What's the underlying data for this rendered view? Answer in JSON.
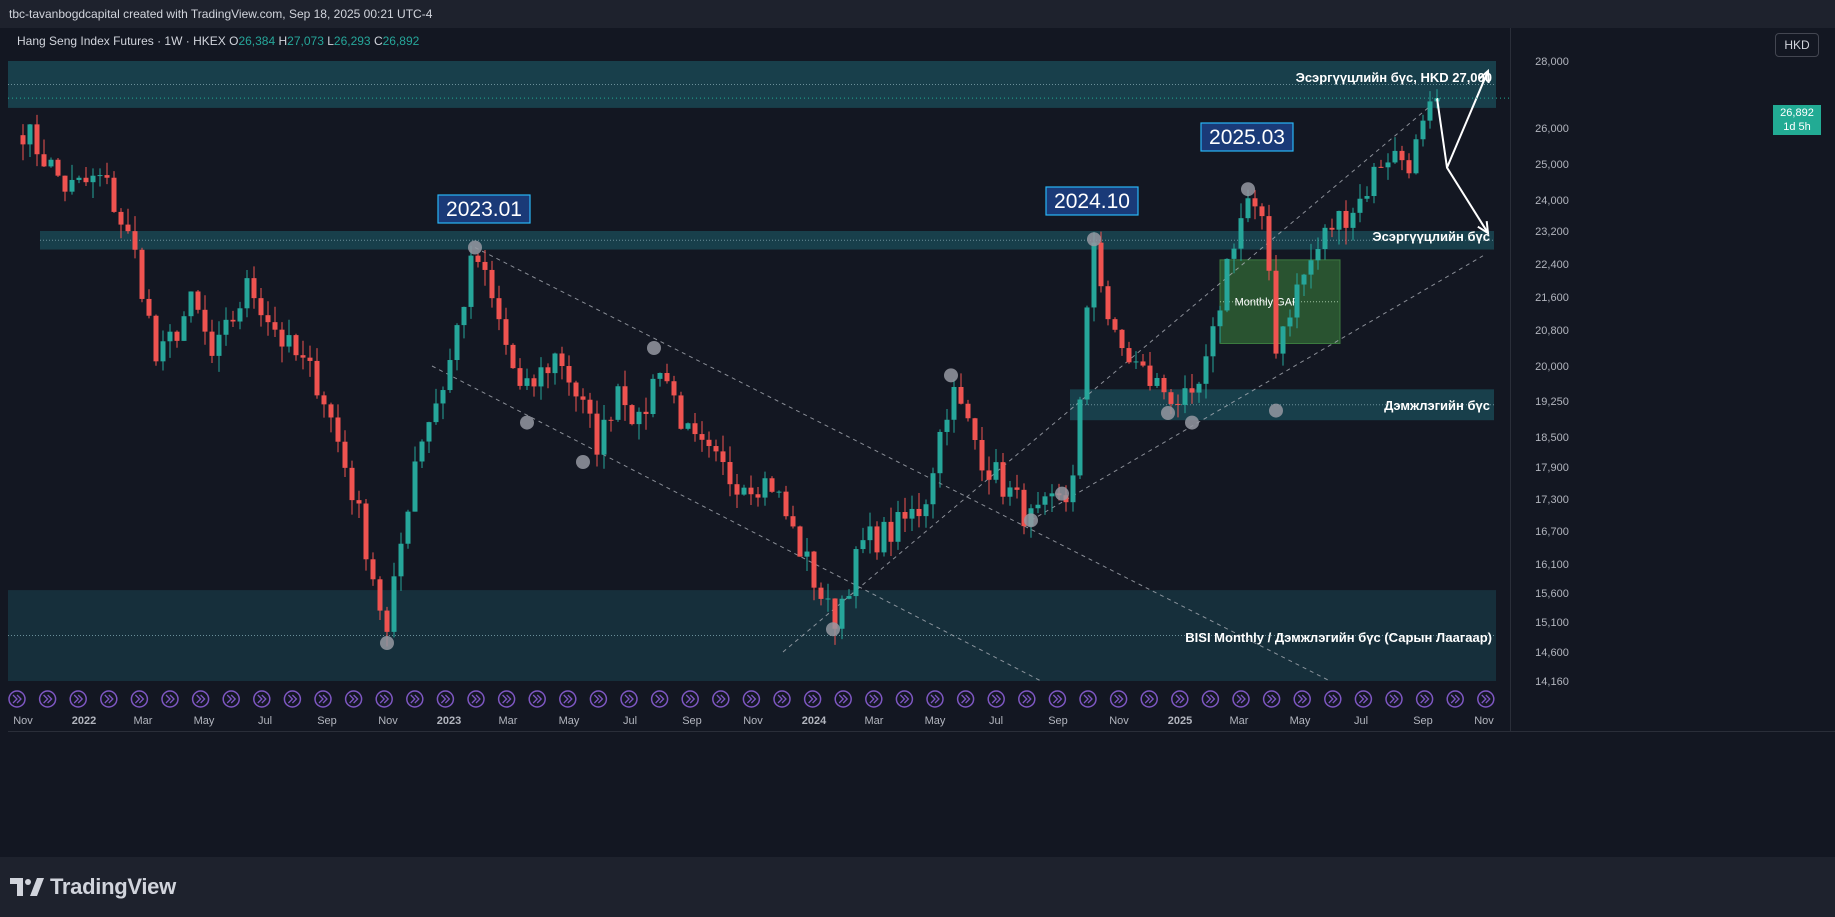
{
  "header": {
    "publisher_line": "tbc-tavanbogdcapital created with TradingView.com, Sep 18, 2025 00:21 UTC-4"
  },
  "legend": {
    "symbol": "Hang Seng Index Futures · 1W · HKEX",
    "open_label": "O",
    "open": "26,384",
    "high_label": "H",
    "high": "27,073",
    "low_label": "L",
    "low": "26,293",
    "close_label": "C",
    "close": "26,892"
  },
  "currency_button": "HKD",
  "last_price": {
    "value": "26,892",
    "countdown": "1d 5h"
  },
  "brand": "TradingView",
  "colors": {
    "background": "#131722",
    "up_candle": "#26a69a",
    "down_candle": "#ef5350",
    "zone_fill": "#1b4e5a",
    "gap_fill": "#2e5e32",
    "callout_fill": "#1a3a78",
    "callout_border": "#29b6f6",
    "pivot_marker": "#9598a1"
  },
  "chart_data": {
    "type": "candlestick",
    "timeframe": "1W",
    "y_ticks": [
      28000,
      26000,
      25000,
      24000,
      23200,
      22400,
      21600,
      20800,
      20000,
      19250,
      18500,
      17900,
      17300,
      16700,
      16100,
      15600,
      15100,
      14600,
      14160
    ],
    "y_tick_labels": [
      "28,000",
      "26,000",
      "25,000",
      "24,000",
      "23,200",
      "22,400",
      "21,600",
      "20,800",
      "20,000",
      "19,250",
      "18,500",
      "17,900",
      "17,300",
      "16,700",
      "16,100",
      "15,600",
      "15,100",
      "14,600",
      "14,160"
    ],
    "x_tick_labels": [
      "Nov",
      "2022",
      "Mar",
      "May",
      "Jul",
      "Sep",
      "Nov",
      "2023",
      "Mar",
      "May",
      "Jul",
      "Sep",
      "Nov",
      "2024",
      "Mar",
      "May",
      "Jul",
      "Sep",
      "Nov",
      "2025",
      "Mar",
      "May",
      "Jul",
      "Sep",
      "Nov"
    ],
    "x_tick_bold": [
      false,
      true,
      false,
      false,
      false,
      false,
      false,
      true,
      false,
      false,
      false,
      false,
      false,
      true,
      false,
      false,
      false,
      false,
      false,
      true,
      false,
      false,
      false,
      false,
      false
    ],
    "range": {
      "start": "2021-11",
      "end": "2025-11"
    },
    "candle_anchors": [
      [
        "2021-11-01",
        26000
      ],
      [
        "2021-12-15",
        24300
      ],
      [
        "2022-01-20",
        24600
      ],
      [
        "2022-02-24",
        22400
      ],
      [
        "2022-03-15",
        20000
      ],
      [
        "2022-04-20",
        21500
      ],
      [
        "2022-05-10",
        20100
      ],
      [
        "2022-06-15",
        21900
      ],
      [
        "2022-07-20",
        20500
      ],
      [
        "2022-08-25",
        19600
      ],
      [
        "2022-09-30",
        17200
      ],
      [
        "2022-10-31",
        14850
      ],
      [
        "2022-11-30",
        18300
      ],
      [
        "2022-12-30",
        19800
      ],
      [
        "2023-01-27",
        22700
      ],
      [
        "2023-03-15",
        19300
      ],
      [
        "2023-04-20",
        20300
      ],
      [
        "2023-05-31",
        18300
      ],
      [
        "2023-06-20",
        19700
      ],
      [
        "2023-07-10",
        18700
      ],
      [
        "2023-07-31",
        20100
      ],
      [
        "2023-08-30",
        18400
      ],
      [
        "2023-10-10",
        17700
      ],
      [
        "2023-11-20",
        17600
      ],
      [
        "2023-12-15",
        16500
      ],
      [
        "2024-01-20",
        15100
      ],
      [
        "2024-02-20",
        16500
      ],
      [
        "2024-03-20",
        16700
      ],
      [
        "2024-04-20",
        17200
      ],
      [
        "2024-05-17",
        19500
      ],
      [
        "2024-06-20",
        18000
      ],
      [
        "2024-08-05",
        16900
      ],
      [
        "2024-09-10",
        17300
      ],
      [
        "2024-09-20",
        18300
      ],
      [
        "2024-10-07",
        23000
      ],
      [
        "2024-10-25",
        20600
      ],
      [
        "2024-12-01",
        19700
      ],
      [
        "2025-01-13",
        19100
      ],
      [
        "2025-01-31",
        20200
      ],
      [
        "2025-02-20",
        22800
      ],
      [
        "2025-03-10",
        24000
      ],
      [
        "2025-03-28",
        23000
      ],
      [
        "2025-04-07",
        20500
      ],
      [
        "2025-04-30",
        21900
      ],
      [
        "2025-05-31",
        23300
      ],
      [
        "2025-06-30",
        24000
      ],
      [
        "2025-07-25",
        25300
      ],
      [
        "2025-08-20",
        25100
      ],
      [
        "2025-09-15",
        26892
      ]
    ],
    "pivots": [
      [
        "2022-10-31",
        14750
      ],
      [
        "2023-01-27",
        22800
      ],
      [
        "2023-03-20",
        18800
      ],
      [
        "2023-05-15",
        18000
      ],
      [
        "2023-07-25",
        20400
      ],
      [
        "2024-01-20",
        14980
      ],
      [
        "2024-05-17",
        19800
      ],
      [
        "2024-08-05",
        16900
      ],
      [
        "2024-09-05",
        17400
      ],
      [
        "2024-10-07",
        23000
      ],
      [
        "2024-12-20",
        19000
      ],
      [
        "2025-01-13",
        18800
      ],
      [
        "2025-03-10",
        24300
      ],
      [
        "2025-04-07",
        19050
      ]
    ],
    "zones": [
      {
        "label": "Эсэргүүцлийн бүс, HKD 27,000",
        "from": 26600,
        "to": 28000
      },
      {
        "label": "Эсэргүүцлийн бүс",
        "from": 22750,
        "to": 23200
      },
      {
        "label": "Дэмжлэгийн бүс",
        "from": 18850,
        "to": 19500
      },
      {
        "label": "BISI Monthly / Дэмжлэгийн бүс (Сарын Лаагаар)",
        "from": 14160,
        "to": 15650
      }
    ],
    "gap_box": {
      "label": "Monthly GAP",
      "from_date": "2025-02-10",
      "to_date": "2025-06-10",
      "from": 20500,
      "to": 22500
    },
    "callouts": [
      "2023.01",
      "2024.10",
      "2025.03"
    ],
    "trend_channels": [
      {
        "name": "down-channel",
        "lines": [
          [
            [
              "2023-01-27",
              22800
            ],
            [
              "2025-05-31",
              14160
            ]
          ],
          [
            [
              "2022-12-15",
              20000
            ],
            [
              "2024-08-15",
              14160
            ]
          ]
        ]
      },
      {
        "name": "up-channel",
        "lines": [
          [
            [
              "2023-12-01",
              14600
            ],
            [
              "2025-09-10",
              26700
            ]
          ],
          [
            [
              "2024-08-05",
              16900
            ],
            [
              "2025-10-31",
              22600
            ]
          ]
        ]
      }
    ],
    "projection": [
      [
        "2025-09-15",
        26892
      ],
      [
        "2025-09-25",
        24900
      ],
      [
        "2025-11-05",
        23150
      ],
      [
        "2025-09-25",
        24900
      ],
      [
        "2025-11-05",
        27700
      ]
    ]
  }
}
